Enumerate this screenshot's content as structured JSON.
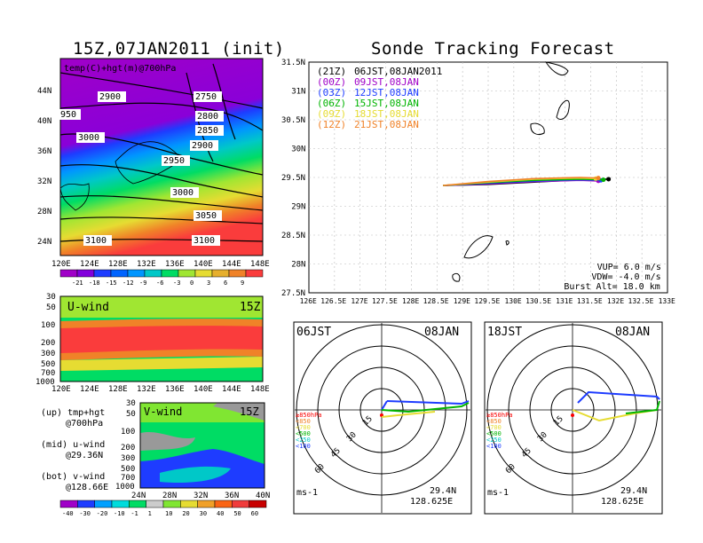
{
  "left_title": "15Z,07JAN2011 (init)",
  "right_title": "Sonde Tracking Forecast",
  "top_panel": {
    "label": "temp(C)+hgt(m)@700hPa",
    "x_ticks": [
      "120E",
      "124E",
      "128E",
      "132E",
      "136E",
      "140E",
      "144E",
      "148E"
    ],
    "y_ticks": [
      "24N",
      "28N",
      "32N",
      "36N",
      "40N",
      "44N"
    ],
    "contour_labels": [
      "2900",
      "2750",
      "2800",
      "2850",
      "950",
      "3000",
      "2900",
      "2950",
      "3000",
      "3050",
      "3100",
      "3100"
    ],
    "colorbar_ticks": [
      "-21",
      "-18",
      "-15",
      "-12",
      "-9",
      "-6",
      "-3",
      "0",
      "3",
      "6",
      "9"
    ],
    "colorbar_colors": [
      "#a000c8",
      "#8200dc",
      "#1e3cff",
      "#0064ff",
      "#0096ff",
      "#00c8c8",
      "#00dc64",
      "#a0e632",
      "#e6dc32",
      "#e6af2d",
      "#f08228",
      "#fa3c3c"
    ]
  },
  "mid_panel": {
    "label": "U-wind",
    "time": "15Z",
    "y_ticks": [
      "30",
      "50",
      "100",
      "200",
      "300",
      "500",
      "700",
      "1000"
    ],
    "x_ticks": [
      "120E",
      "124E",
      "128E",
      "132E",
      "136E",
      "140E",
      "144E",
      "148E"
    ]
  },
  "bot_panel": {
    "label": "V-wind",
    "time": "15Z",
    "y_ticks": [
      "30",
      "50",
      "100",
      "200",
      "300",
      "500",
      "700",
      "1000"
    ],
    "x_ticks": [
      "24N",
      "28N",
      "32N",
      "36N",
      "40N"
    ],
    "colorbar_ticks": [
      "-40",
      "-30",
      "-20",
      "-10",
      "-1",
      "1",
      "10",
      "20",
      "30",
      "40",
      "50",
      "60"
    ],
    "colorbar_colors": [
      "#a000c8",
      "#1e3cff",
      "#00a0ff",
      "#00dcdc",
      "#00dc64",
      "#cccccc",
      "#80e632",
      "#e6dc32",
      "#f0a028",
      "#fa6414",
      "#f03c3c",
      "#c80000"
    ]
  },
  "legend_notes": [
    {
      "a": "(up) tmp+hgt",
      "b": "@700hPa"
    },
    {
      "a": "(mid) u-wind",
      "b": "@29.36N"
    },
    {
      "a": "(bot) v-wind",
      "b": "@128.66E"
    }
  ],
  "tracking": {
    "x_ticks": [
      "126E",
      "126.5E",
      "127E",
      "127.5E",
      "128E",
      "128.5E",
      "129E",
      "129.5E",
      "130E",
      "130.5E",
      "131E",
      "131.5E",
      "132E",
      "132.5E",
      "133E"
    ],
    "y_ticks": [
      "27.5N",
      "28N",
      "28.5N",
      "29N",
      "29.5N",
      "30N",
      "30.5N",
      "31N",
      "31.5N"
    ],
    "forecasts": [
      {
        "code": "(21Z)",
        "time": "06JST,08JAN2011",
        "color": "#000000"
      },
      {
        "code": "(00Z)",
        "time": "09JST,08JAN",
        "color": "#a000c8"
      },
      {
        "code": "(03Z)",
        "time": "12JST,08JAN",
        "color": "#1e3cff"
      },
      {
        "code": "(06Z)",
        "time": "15JST,08JAN",
        "color": "#00b400"
      },
      {
        "code": "(09Z)",
        "time": "18JST,08JAN",
        "color": "#e6dc32"
      },
      {
        "code": "(12Z)",
        "time": "21JST,08JAN",
        "color": "#f08228"
      }
    ],
    "params": [
      "VUP= 6.0 m/s",
      "VDW= -4.0 m/s",
      "Burst Alt= 18.0 km"
    ],
    "chart_data": {
      "type": "line",
      "xlim": [
        126,
        133
      ],
      "ylim": [
        27.5,
        31.5
      ],
      "series": [
        {
          "color": "#000000",
          "x": [
            128.62,
            129.5,
            130.4,
            131.3,
            131.85
          ],
          "y": [
            29.36,
            29.38,
            29.42,
            29.46,
            29.47
          ]
        },
        {
          "color": "#a000c8",
          "x": [
            128.62,
            129.5,
            130.4,
            131.3,
            131.65
          ],
          "y": [
            29.36,
            29.39,
            29.43,
            29.45,
            29.44
          ]
        },
        {
          "color": "#1e3cff",
          "x": [
            128.62,
            129.5,
            130.4,
            131.3,
            131.7
          ],
          "y": [
            29.36,
            29.4,
            29.44,
            29.46,
            29.45
          ]
        },
        {
          "color": "#00b400",
          "x": [
            128.62,
            129.5,
            130.4,
            131.3,
            131.75
          ],
          "y": [
            29.36,
            29.41,
            29.45,
            29.47,
            29.46
          ]
        },
        {
          "color": "#e6dc32",
          "x": [
            128.62,
            129.5,
            130.4,
            131.3,
            131.6
          ],
          "y": [
            29.36,
            29.42,
            29.47,
            29.49,
            29.48
          ]
        },
        {
          "color": "#f08228",
          "x": [
            128.62,
            129.5,
            130.4,
            131.3,
            131.65
          ],
          "y": [
            29.36,
            29.43,
            29.48,
            29.5,
            29.49
          ]
        }
      ]
    }
  },
  "polar_left": {
    "time": "06JST",
    "date": "08JAN",
    "rings": [
      "15",
      "30",
      "45",
      "60"
    ],
    "levels": [
      {
        "t": "≥850hPa",
        "c": "#fa0000"
      },
      {
        "t": "<850",
        "c": "#f08228"
      },
      {
        "t": "<700",
        "c": "#e6dc32"
      },
      {
        "t": "<500",
        "c": "#00b400"
      },
      {
        "t": "<250",
        "c": "#00c8c8"
      },
      {
        "t": "<100",
        "c": "#1e3cff"
      }
    ],
    "unit": "ms-1",
    "lat": "29.4N",
    "lon": "128.625E"
  },
  "polar_right": {
    "time": "18JST",
    "date": "08JAN",
    "rings": [
      "15",
      "30",
      "45",
      "60"
    ],
    "levels": [
      {
        "t": "≥850hPa",
        "c": "#fa0000"
      },
      {
        "t": "<850",
        "c": "#f08228"
      },
      {
        "t": "<700",
        "c": "#e6dc32"
      },
      {
        "t": "<500",
        "c": "#00b400"
      },
      {
        "t": "<250",
        "c": "#00c8c8"
      },
      {
        "t": "<100",
        "c": "#1e3cff"
      }
    ],
    "unit": "ms-1",
    "lat": "29.4N",
    "lon": "128.625E"
  }
}
